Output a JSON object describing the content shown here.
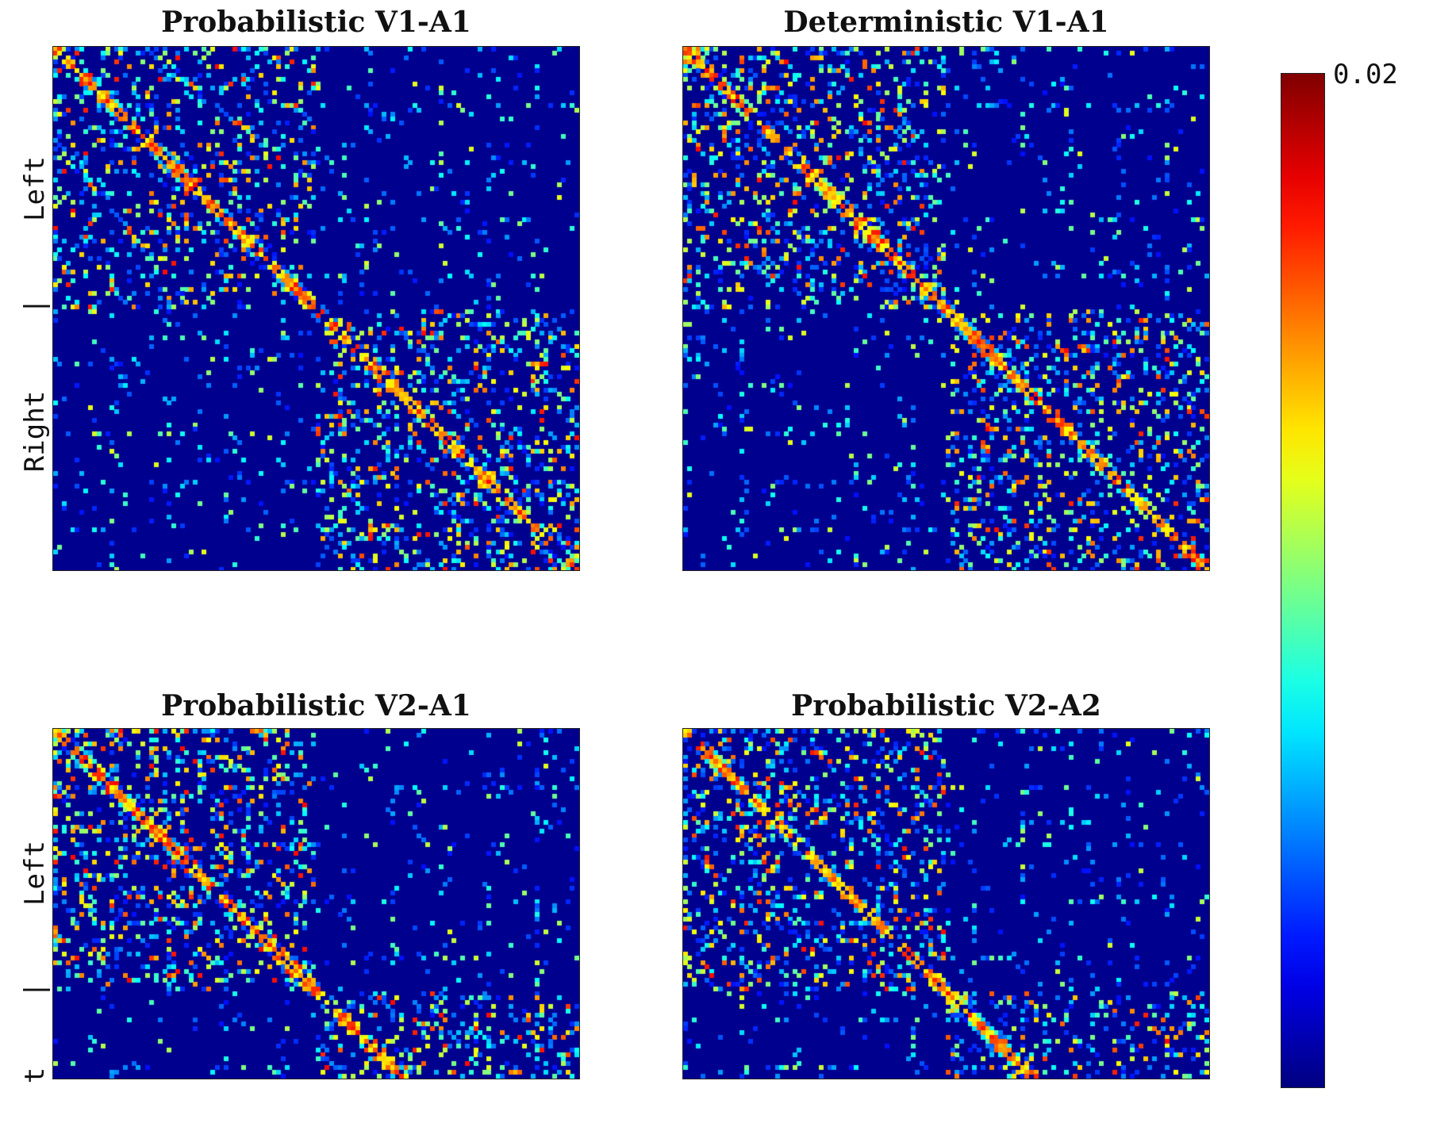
{
  "chart_data": [
    {
      "type": "heatmap",
      "title": "Probabilistic V1-A1",
      "ylabel_top": "Left",
      "ylabel_separator": "|",
      "ylabel_bottom": "Right",
      "seed": 11
    },
    {
      "type": "heatmap",
      "title": "Deterministic V1-A1",
      "seed": 23
    },
    {
      "type": "heatmap",
      "title": "Probabilistic V2-A1",
      "ylabel_top": "Left",
      "ylabel_separator": "|",
      "ylabel_bottom": "t",
      "seed": 37
    },
    {
      "type": "heatmap",
      "title": "Probabilistic V2-A2",
      "seed": 53
    }
  ],
  "colorbar": {
    "colormap": "jet",
    "max_label": "0.02",
    "vmax": 0.02,
    "vmin": 0
  }
}
